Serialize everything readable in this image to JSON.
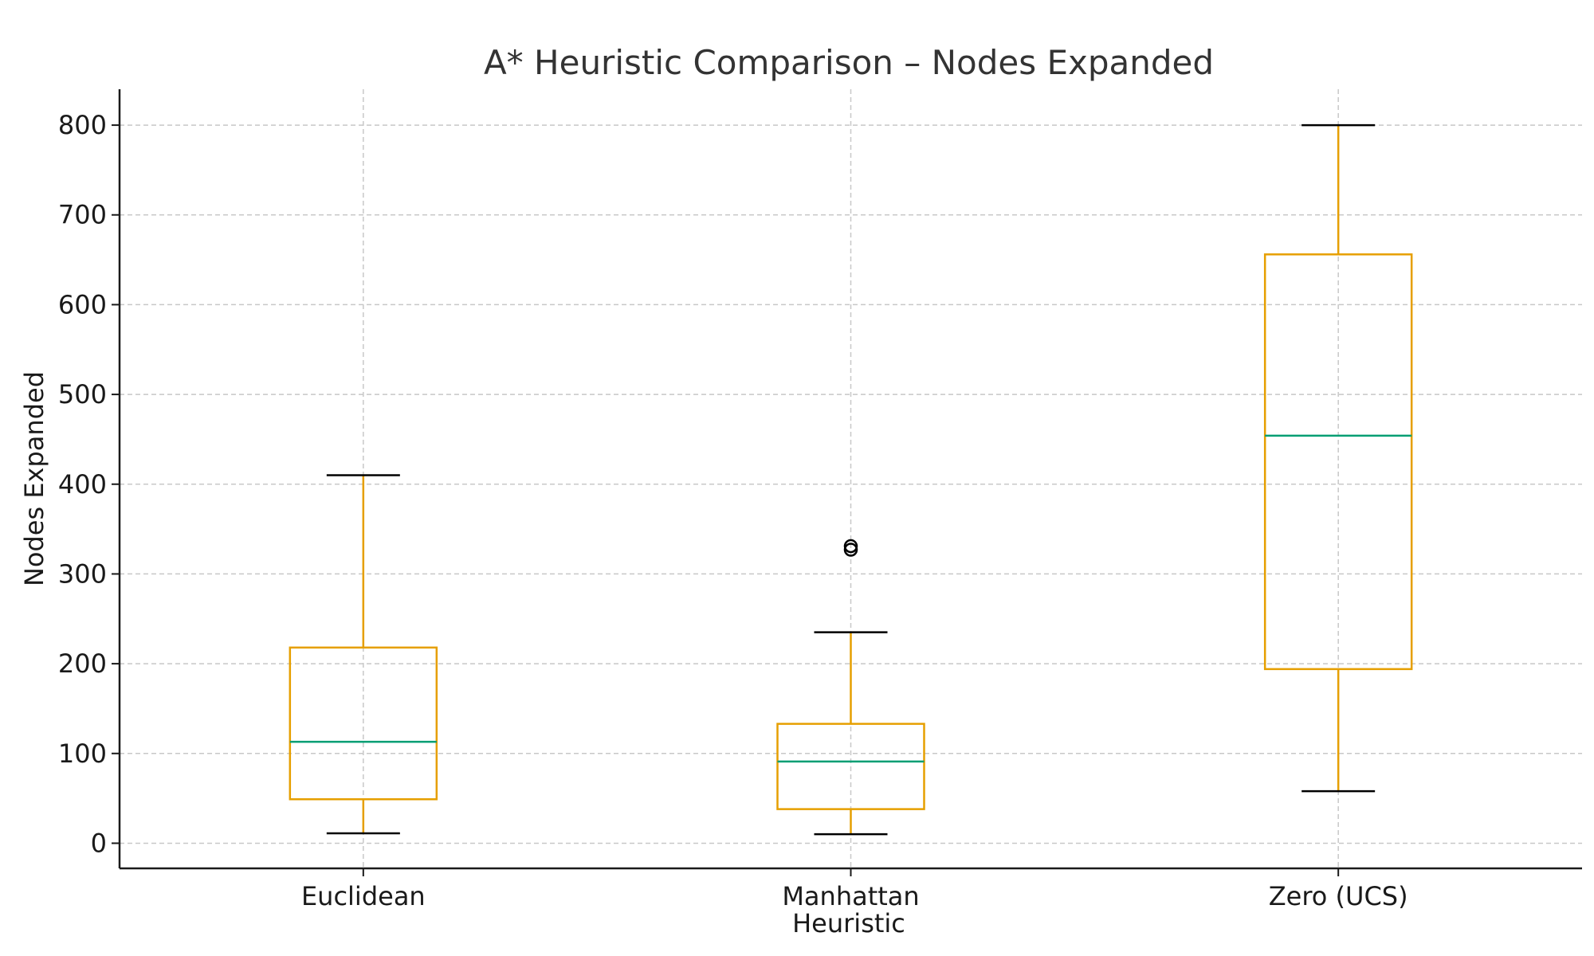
{
  "chart_data": {
    "type": "box",
    "title": "A* Heuristic Comparison – Nodes Expanded",
    "xlabel": "Heuristic",
    "ylabel": "Nodes Expanded",
    "ylim": [
      -28,
      840
    ],
    "yticks": [
      0,
      100,
      200,
      300,
      400,
      500,
      600,
      700,
      800
    ],
    "grid": true,
    "categories": [
      "Euclidean",
      "Manhattan",
      "Zero (UCS)"
    ],
    "boxes": [
      {
        "category": "Euclidean",
        "whisker_low": 11,
        "q1": 49,
        "median": 113,
        "q3": 218,
        "whisker_high": 410,
        "outliers": []
      },
      {
        "category": "Manhattan",
        "whisker_low": 10,
        "q1": 38,
        "median": 91,
        "q3": 133,
        "whisker_high": 235,
        "outliers": [
          327,
          331
        ]
      },
      {
        "category": "Zero (UCS)",
        "whisker_low": 58,
        "q1": 194,
        "median": 454,
        "q3": 656,
        "whisker_high": 800,
        "outliers": []
      }
    ],
    "colors": {
      "box": "#e69f00",
      "median": "#009e73",
      "whisker_cap": "#000000",
      "outlier": "#000000",
      "grid": "#c8c8c8"
    }
  }
}
